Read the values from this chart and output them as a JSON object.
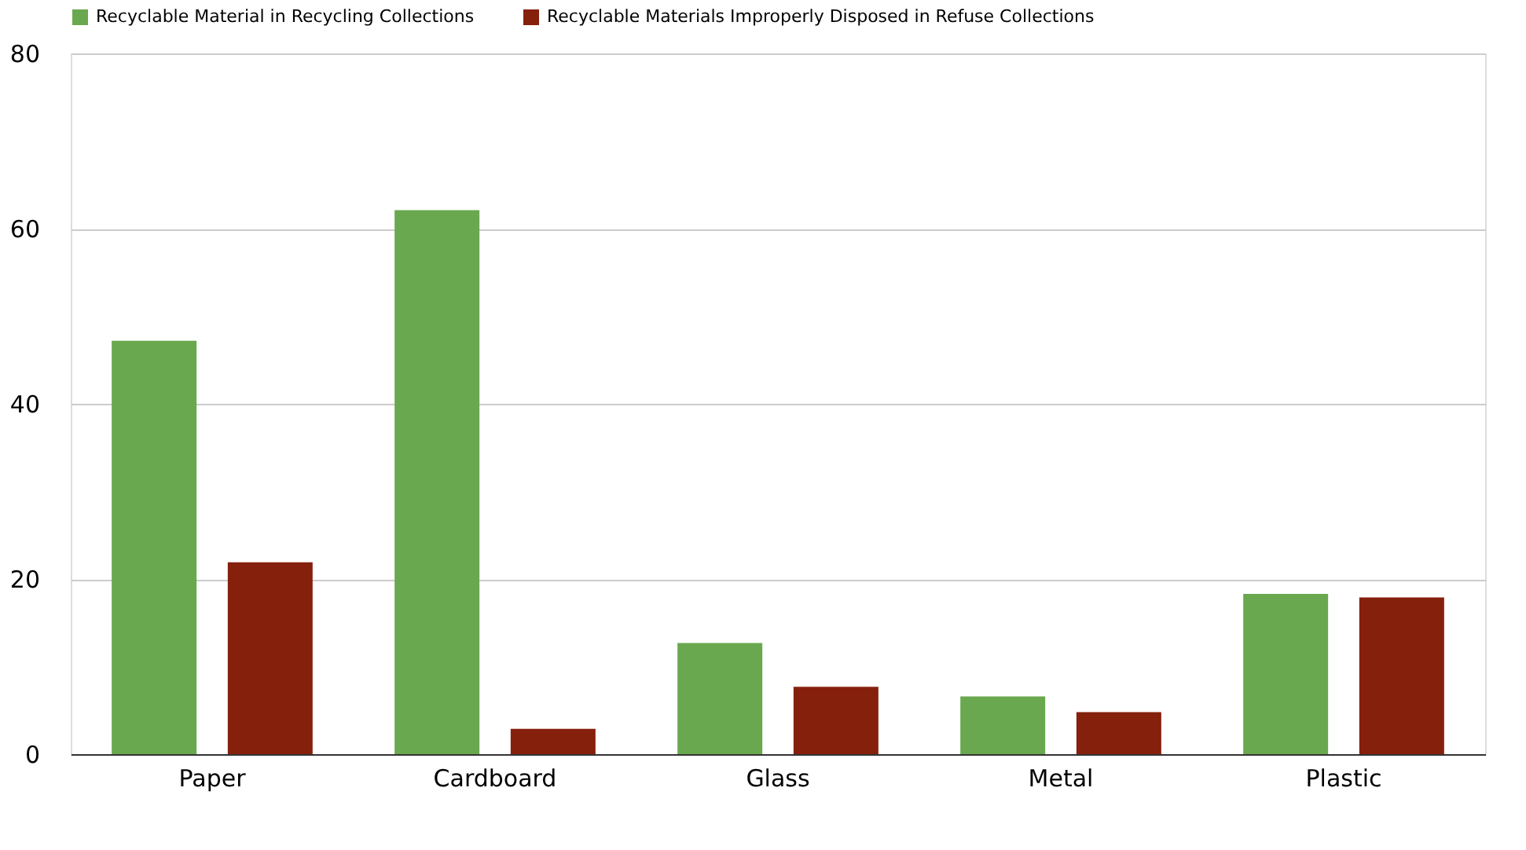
{
  "chart_data": {
    "type": "bar",
    "categories": [
      "Paper",
      "Cardboard",
      "Glass",
      "Metal",
      "Plastic"
    ],
    "series": [
      {
        "name": "Recyclable Material in Recycling Collections",
        "color": "#6aa84f",
        "values": [
          47.2,
          62.1,
          12.7,
          6.6,
          18.3
        ]
      },
      {
        "name": "Recyclable Materials Improperly Disposed in Refuse Collections",
        "color": "#85200c",
        "values": [
          21.9,
          2.9,
          7.7,
          4.8,
          17.9
        ]
      }
    ],
    "ylim": [
      0,
      80
    ],
    "yticks": [
      0,
      20,
      40,
      60,
      80
    ],
    "grid": "y",
    "legend": "top"
  }
}
